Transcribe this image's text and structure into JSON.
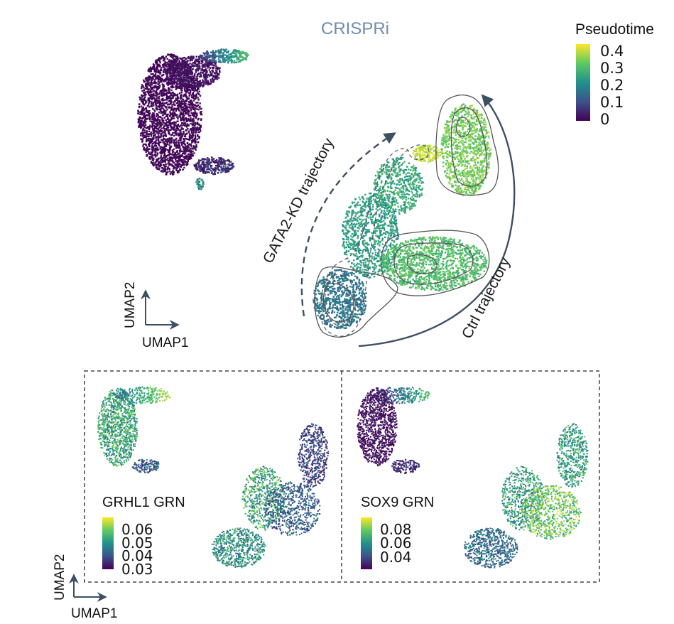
{
  "title": "CRISPRi",
  "pseudotime_legend": {
    "title": "Pseudotime",
    "ticks": [
      "0.4",
      "0.3",
      "0.2",
      "0.1",
      "0"
    ]
  },
  "trajectories": {
    "gata2": "GATA2-KD trajectory",
    "ctrl": "Ctrl trajectory"
  },
  "axes": {
    "x": "UMAP1",
    "y": "UMAP2"
  },
  "panels": [
    {
      "title": "GRHL1 GRN",
      "ticks": [
        "0.06",
        "0.05",
        "0.04",
        "0.03"
      ]
    },
    {
      "title": "SOX9 GRN",
      "ticks": [
        "0.08",
        "0.06",
        "0.04"
      ]
    }
  ],
  "colors": {
    "viridis": [
      "#440154",
      "#3b528b",
      "#21918c",
      "#5ec962",
      "#fde725"
    ],
    "title": "#6f8cad",
    "arrow": "#3d4f63",
    "contour": "#555555"
  }
}
